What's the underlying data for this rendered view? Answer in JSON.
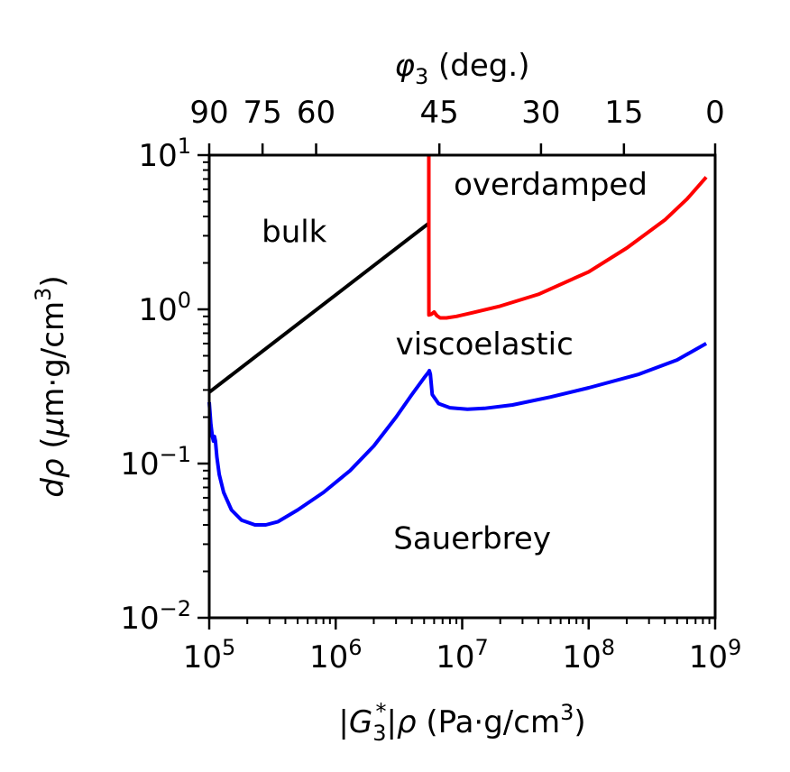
{
  "chart_data": {
    "type": "line",
    "x_scale": "log",
    "y_scale": "log",
    "xlim": [
      100000,
      1000000000
    ],
    "ylim": [
      0.01,
      10
    ],
    "xlabel": "|G3*|ρ (Pa·g/cm3)",
    "xlabel_parts": {
      "pre": "|G",
      "sub": "3",
      "sup": "*",
      "post1": "|",
      "rho": "ρ",
      "post2": " (Pa·g/cm",
      "sup2": "3",
      "close": ")"
    },
    "ylabel": "dρ (μm·g/cm3)",
    "ylabel_parts": {
      "d": "d",
      "rho": "ρ",
      "mid": " (",
      "mu": "μ",
      "rest": "m·g/cm",
      "sup": "3",
      "close": ")"
    },
    "top_xlabel": "φ3 (deg.)",
    "top_xlabel_parts": {
      "phi": "φ",
      "sub": "3",
      "rest": " (deg.)"
    },
    "x_ticks": [
      {
        "value": 100000,
        "base": "10",
        "exp": "5"
      },
      {
        "value": 1000000,
        "base": "10",
        "exp": "6"
      },
      {
        "value": 10000000,
        "base": "10",
        "exp": "7"
      },
      {
        "value": 100000000,
        "base": "10",
        "exp": "8"
      },
      {
        "value": 1000000000,
        "base": "10",
        "exp": "9"
      }
    ],
    "y_ticks": [
      {
        "value": 10,
        "base": "10",
        "exp": "1"
      },
      {
        "value": 1,
        "base": "10",
        "exp": "0"
      },
      {
        "value": 0.1,
        "base": "10",
        "exp": "−1"
      },
      {
        "value": 0.01,
        "base": "10",
        "exp": "−2"
      }
    ],
    "top_ticks": [
      {
        "label": "90",
        "x": 100000
      },
      {
        "label": "75",
        "x": 264000
      },
      {
        "label": "60",
        "x": 700000
      },
      {
        "label": "45",
        "x": 6600000
      },
      {
        "label": "30",
        "x": 42000000
      },
      {
        "label": "15",
        "x": 190000000
      },
      {
        "label": "0",
        "x": 1000000000
      }
    ],
    "region_labels": [
      {
        "text": "bulk",
        "x": 470000,
        "y": 3.2
      },
      {
        "text": "overdamped",
        "x": 50000000,
        "y": 6.5
      },
      {
        "text": "viscoelastic",
        "x": 15000000,
        "y": 0.6
      },
      {
        "text": "Sauerbrey",
        "x": 12000000,
        "y": 0.033
      }
    ],
    "series": [
      {
        "name": "bulk",
        "color": "#000000",
        "x": [
          100000,
          5400000
        ],
        "y": [
          0.29,
          3.6
        ]
      },
      {
        "name": "overdamped",
        "color": "#ff0000",
        "x": [
          5450000,
          5450000,
          5460000,
          5700000,
          6000000,
          6300000,
          6700000,
          7500000,
          9000000,
          12000000,
          20000000,
          40000000,
          100000000,
          200000000,
          400000000,
          600000000,
          850000000
        ],
        "y": [
          10,
          3.0,
          0.92,
          0.93,
          0.96,
          0.91,
          0.88,
          0.88,
          0.9,
          0.95,
          1.05,
          1.25,
          1.75,
          2.5,
          3.8,
          5.2,
          7.2
        ]
      },
      {
        "name": "viscoelastic",
        "color": "#0000ff",
        "x": [
          100000,
          103000,
          106000,
          108000,
          110000,
          112000,
          115000,
          120000,
          130000,
          150000,
          180000,
          230000,
          280000,
          350000,
          500000,
          800000,
          1300000,
          2000000,
          3000000,
          4000000,
          5000000,
          5400000,
          5500000,
          5600000,
          5800000,
          6500000,
          8000000,
          11000000,
          15000000,
          25000000,
          50000000,
          100000000,
          250000000,
          500000000,
          850000000
        ],
        "y": [
          0.25,
          0.18,
          0.15,
          0.14,
          0.15,
          0.14,
          0.11,
          0.085,
          0.065,
          0.05,
          0.043,
          0.04,
          0.04,
          0.042,
          0.05,
          0.065,
          0.09,
          0.13,
          0.2,
          0.28,
          0.36,
          0.39,
          0.4,
          0.38,
          0.28,
          0.245,
          0.23,
          0.225,
          0.228,
          0.24,
          0.27,
          0.31,
          0.38,
          0.47,
          0.6
        ]
      }
    ]
  }
}
